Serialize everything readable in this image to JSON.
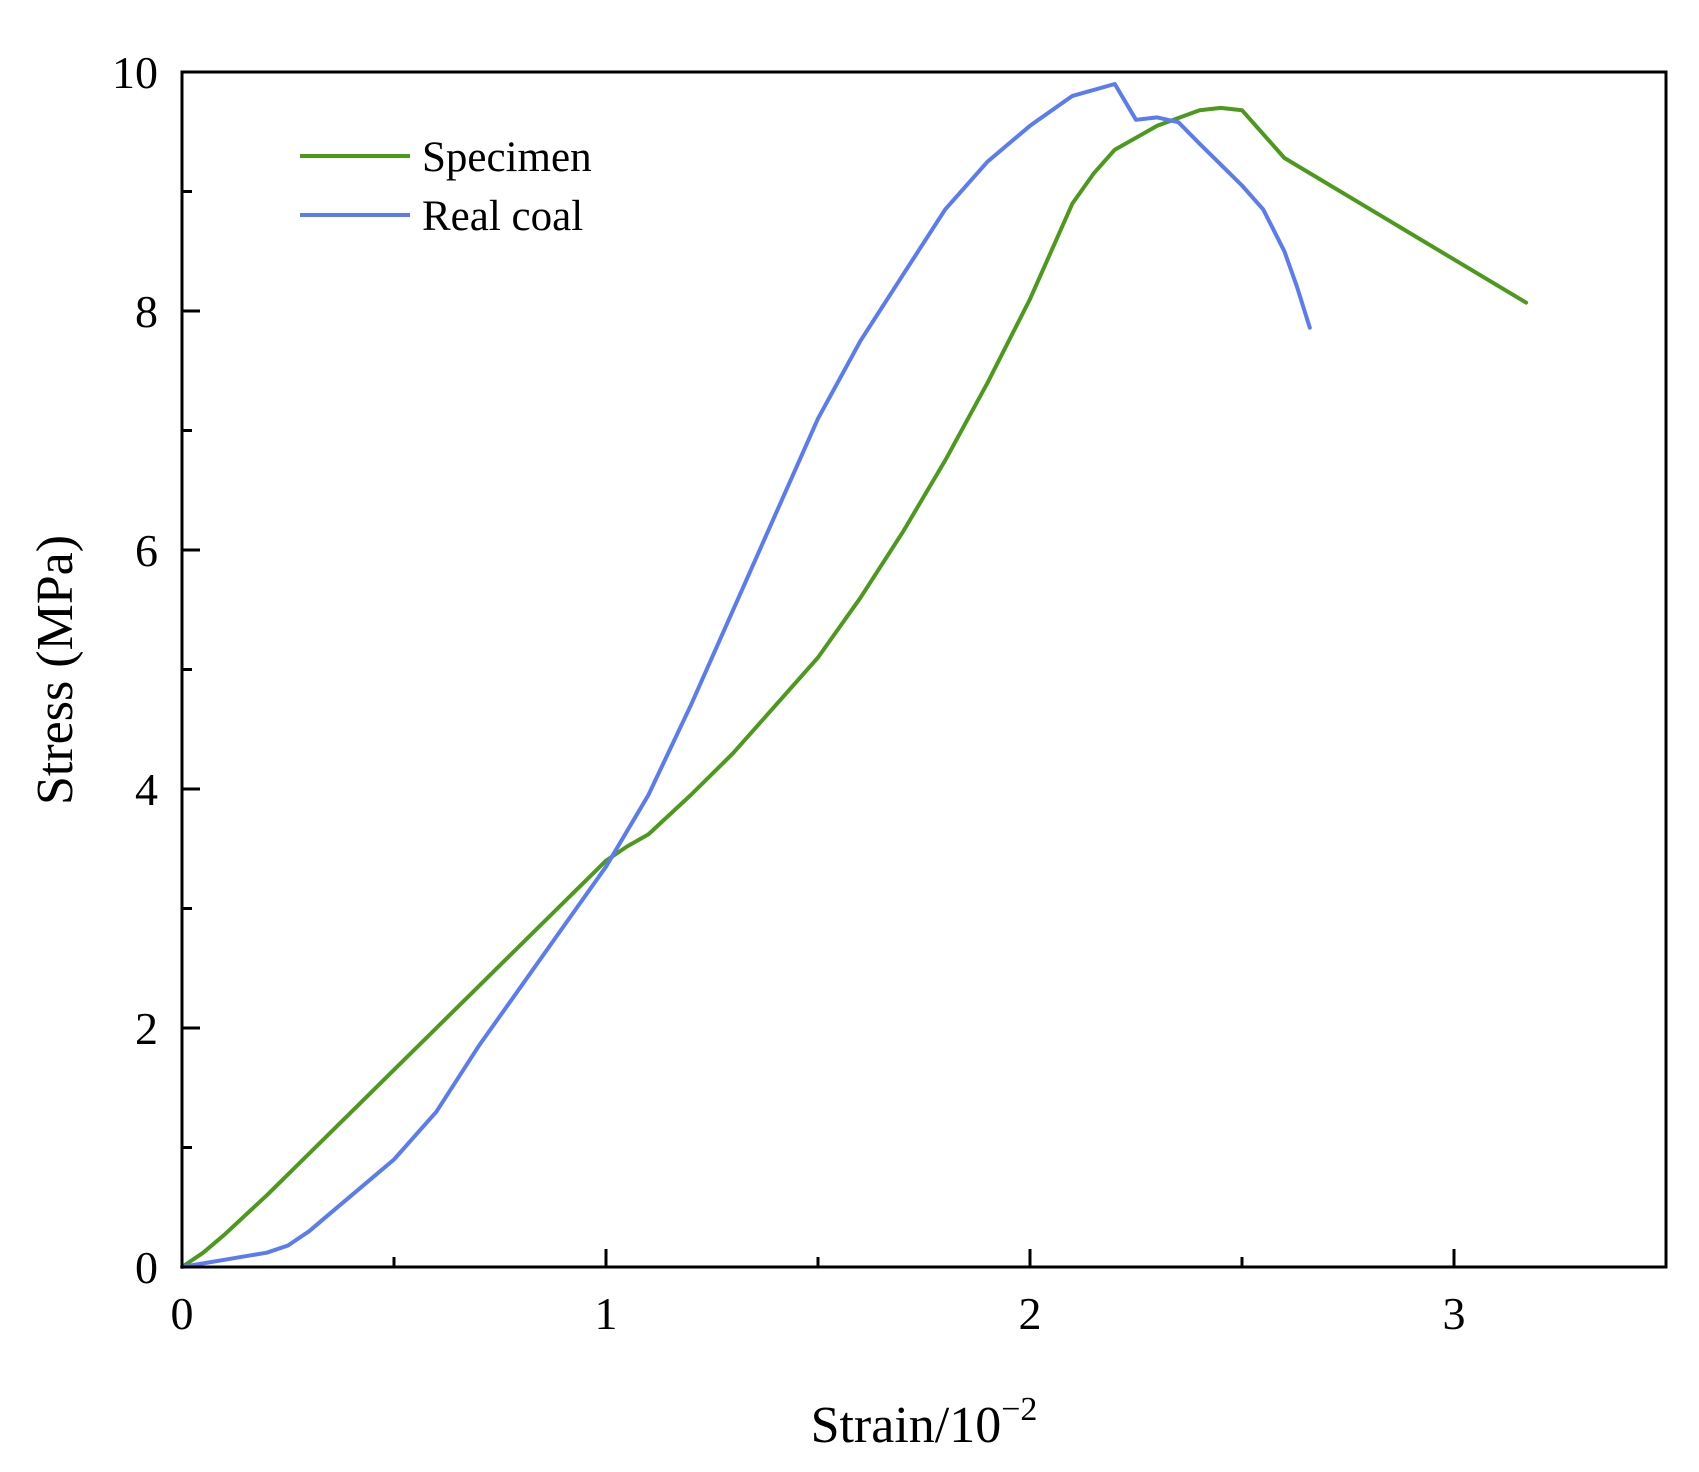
{
  "chart_data": {
    "type": "line",
    "title": "",
    "xlabel": "Strain/10",
    "xlabel_superscript": "−2",
    "ylabel": "Stress (MPa)",
    "xlim": [
      0,
      3.5
    ],
    "ylim": [
      0,
      10
    ],
    "x_ticks": [
      0,
      1,
      2,
      3
    ],
    "x_tick_labels": [
      "0",
      "1",
      "2",
      "3"
    ],
    "x_minor_ticks": [
      0.5,
      1.5,
      2.5
    ],
    "y_ticks": [
      0,
      2,
      4,
      6,
      8,
      10
    ],
    "y_tick_labels": [
      "0",
      "2",
      "4",
      "6",
      "8",
      "10"
    ],
    "y_minor_ticks": [
      1,
      3,
      5,
      7,
      9
    ],
    "grid": false,
    "legend_position": "top-left",
    "series": [
      {
        "name": "Specimen",
        "color": "#4c9a1c",
        "x": [
          0,
          0.05,
          0.1,
          0.2,
          0.3,
          0.4,
          0.5,
          0.6,
          0.7,
          0.8,
          0.9,
          1.0,
          1.05,
          1.1,
          1.2,
          1.3,
          1.4,
          1.5,
          1.6,
          1.7,
          1.8,
          1.9,
          2.0,
          2.05,
          2.1,
          2.15,
          2.2,
          2.3,
          2.4,
          2.45,
          2.5,
          2.6,
          3.17
        ],
        "y": [
          0,
          0.12,
          0.27,
          0.6,
          0.95,
          1.3,
          1.65,
          2.0,
          2.35,
          2.7,
          3.05,
          3.4,
          3.52,
          3.62,
          3.95,
          4.3,
          4.7,
          5.1,
          5.6,
          6.15,
          6.75,
          7.4,
          8.1,
          8.5,
          8.9,
          9.15,
          9.35,
          9.55,
          9.68,
          9.7,
          9.68,
          9.28,
          8.07
        ]
      },
      {
        "name": "Real coal",
        "color": "#5b7bf0",
        "x": [
          0,
          0.05,
          0.1,
          0.15,
          0.2,
          0.25,
          0.3,
          0.35,
          0.4,
          0.5,
          0.6,
          0.7,
          0.8,
          0.9,
          1.0,
          1.1,
          1.2,
          1.3,
          1.4,
          1.5,
          1.6,
          1.7,
          1.8,
          1.9,
          2.0,
          2.1,
          2.2,
          2.25,
          2.3,
          2.35,
          2.4,
          2.5,
          2.55,
          2.6,
          2.63,
          2.66
        ],
        "y": [
          0,
          0.03,
          0.06,
          0.09,
          0.12,
          0.18,
          0.3,
          0.45,
          0.6,
          0.9,
          1.3,
          1.85,
          2.35,
          2.85,
          3.35,
          3.95,
          4.7,
          5.5,
          6.3,
          7.1,
          7.75,
          8.3,
          8.85,
          9.25,
          9.55,
          9.8,
          9.9,
          9.6,
          9.62,
          9.58,
          9.4,
          9.05,
          8.85,
          8.5,
          8.2,
          7.86
        ]
      }
    ]
  }
}
